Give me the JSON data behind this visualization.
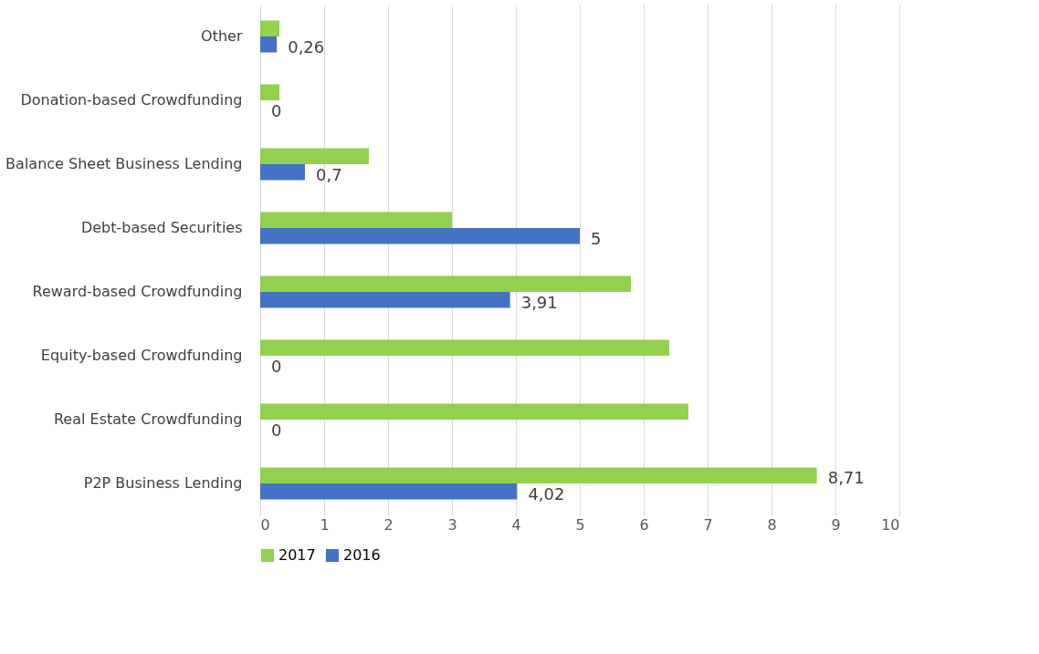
{
  "chart_data": {
    "type": "bar",
    "orientation": "horizontal",
    "categories": [
      "Other",
      "Donation-based Crowdfunding",
      "Balance Sheet Business Lending",
      "Debt-based Securities",
      "Reward-based Crowdfunding",
      "Equity-based Crowdfunding",
      "Real Estate Crowdfunding",
      "P2P Business Lending"
    ],
    "series": [
      {
        "name": "2017",
        "color": "#92d050",
        "values": [
          0.3,
          0.3,
          1.7,
          3.0,
          5.8,
          6.4,
          6.7,
          8.71
        ],
        "value_labels": [
          null,
          null,
          null,
          null,
          null,
          null,
          null,
          "8,71"
        ]
      },
      {
        "name": "2016",
        "color": "#4472c4",
        "values": [
          0.26,
          0,
          0.7,
          5,
          3.91,
          0,
          0,
          4.02
        ],
        "value_labels": [
          "0,26",
          "0",
          "0,7",
          "5",
          "3,91",
          "0",
          "0",
          "4,02"
        ]
      }
    ],
    "xlim": [
      0,
      10
    ],
    "xticks": [
      0,
      1,
      2,
      3,
      4,
      5,
      6,
      7,
      8,
      9,
      10
    ],
    "grid": "x",
    "legend": "bottom"
  }
}
